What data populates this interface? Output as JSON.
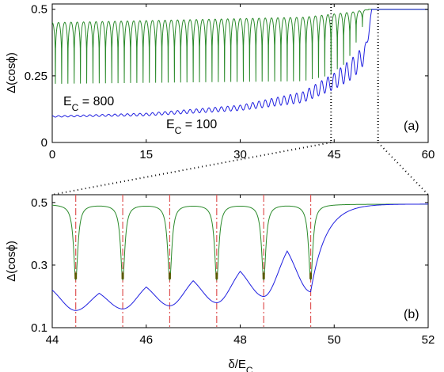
{
  "chart_data": [
    {
      "id": "a",
      "type": "line",
      "panel_label": "(a)",
      "xlim": [
        0,
        60
      ],
      "ylim": [
        0,
        0.52
      ],
      "xticks": [
        "0",
        "15",
        "30",
        "45",
        "60"
      ],
      "yticks": [
        "0",
        "0.25",
        "0.5"
      ],
      "ylabel": "Δ(cosϕ)",
      "xlabel": "",
      "guides_x": [
        44.5,
        52
      ],
      "series": [
        {
          "name": "E_C = 800",
          "color": "#2a8a2a",
          "kind": "oscillation",
          "period": 1,
          "x_range": [
            0,
            50.5
          ],
          "max": [
            [
              0,
              0.45
            ],
            [
              40,
              0.47
            ],
            [
              48,
              0.49
            ],
            [
              50.5,
              0.5
            ]
          ],
          "min": [
            [
              0,
              0.22
            ],
            [
              20,
              0.225
            ],
            [
              40,
              0.23
            ],
            [
              44,
              0.25
            ],
            [
              47,
              0.3
            ],
            [
              49,
              0.4
            ],
            [
              50.5,
              0.5
            ]
          ],
          "after": 0.5
        },
        {
          "name": "E_C = 100",
          "color": "#1f1fe0",
          "kind": "oscillation",
          "period": 1,
          "x_range": [
            0,
            51
          ],
          "max": [
            [
              0,
              0.1
            ],
            [
              15,
              0.11
            ],
            [
              30,
              0.14
            ],
            [
              40,
              0.19
            ],
            [
              45,
              0.26
            ],
            [
              48,
              0.32
            ],
            [
              50,
              0.37
            ],
            [
              51,
              0.5
            ]
          ],
          "min": [
            [
              0,
              0.095
            ],
            [
              15,
              0.1
            ],
            [
              30,
              0.12
            ],
            [
              40,
              0.15
            ],
            [
              45,
              0.2
            ],
            [
              48,
              0.24
            ],
            [
              50,
              0.3
            ],
            [
              51,
              0.5
            ]
          ],
          "after": 0.5
        }
      ],
      "annotations": [
        {
          "text_main": "E",
          "text_sub": "C",
          "text_tail": " = 800",
          "x": 1.7,
          "y": 0.19
        },
        {
          "text_main": "E",
          "text_sub": "C",
          "text_tail": " = 100",
          "x": 18.2,
          "y": 0.07
        }
      ]
    },
    {
      "id": "b",
      "type": "line",
      "panel_label": "(b)",
      "xlim": [
        44,
        52
      ],
      "ylim": [
        0.1,
        0.525
      ],
      "xticks": [
        "44",
        "46",
        "48",
        "50",
        "52"
      ],
      "yticks": [
        "0.1",
        "0.3",
        "0.5"
      ],
      "ylabel": "Δ(cosϕ)",
      "xlabel": "δ/E",
      "xlabel_sub": "C",
      "vlines_x": [
        44.5,
        45.5,
        46.5,
        47.5,
        48.5,
        49.5
      ],
      "vline_color": "#e05555",
      "series": [
        {
          "name": "green",
          "color": "#2a8a2a",
          "kind": "dips",
          "base": 0.495,
          "dips_x": [
            44.5,
            45.5,
            46.5,
            47.5,
            48.5,
            49.5
          ],
          "dips_y": [
            0.255,
            0.255,
            0.255,
            0.255,
            0.255,
            0.255
          ]
        },
        {
          "name": "blue",
          "color": "#1f1fe0",
          "kind": "cusp",
          "minima": [
            [
              44.5,
              0.155
            ],
            [
              45.5,
              0.16
            ],
            [
              46.5,
              0.17
            ],
            [
              47.5,
              0.18
            ],
            [
              48.5,
              0.2
            ],
            [
              49.5,
              0.215
            ]
          ],
          "maxima": [
            [
              45.0,
              0.21
            ],
            [
              46.0,
              0.23
            ],
            [
              47.0,
              0.25
            ],
            [
              48.0,
              0.28
            ],
            [
              49.0,
              0.345
            ]
          ],
          "start": [
            44,
            0.22
          ],
          "tail_end": [
            52,
            0.495
          ]
        }
      ]
    }
  ],
  "connector": {
    "style": "dotted"
  }
}
